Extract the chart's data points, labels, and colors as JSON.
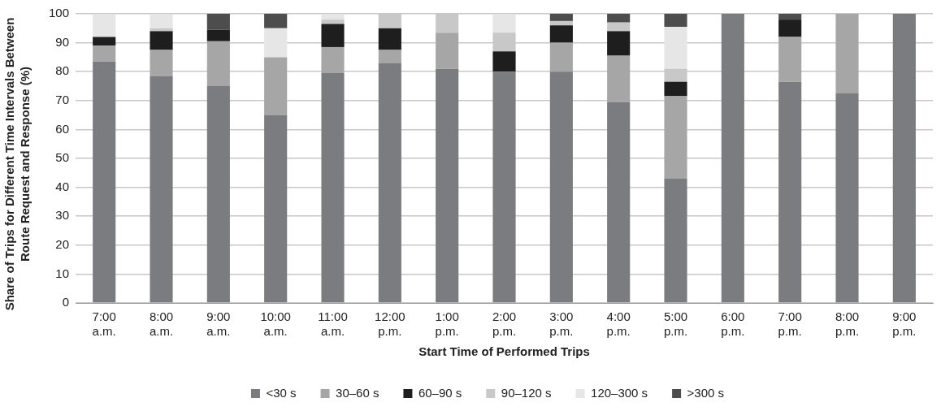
{
  "chart_data": {
    "type": "bar",
    "stacked": true,
    "xlabel": "Start Time of Performed Trips",
    "ylabel": "Share of Trips for Different Time Intervals Between Route Request and Response (%)",
    "categories": [
      "7:00 a.m.",
      "8:00 a.m.",
      "9:00 a.m.",
      "10:00 a.m.",
      "11:00 a.m.",
      "12:00 p.m.",
      "1:00 p.m.",
      "2:00 p.m.",
      "3:00 p.m.",
      "4:00 p.m.",
      "5:00 p.m.",
      "6:00 p.m.",
      "7:00 p.m.",
      "8:00 p.m.",
      "9:00 p.m."
    ],
    "series": [
      {
        "name": "<30 s",
        "color": "#7b7c80",
        "values": [
          83.5,
          78.5,
          75,
          65,
          79.5,
          83,
          81,
          80,
          80,
          69.5,
          43,
          100,
          76.5,
          72.5,
          100
        ]
      },
      {
        "name": "30–60 s",
        "color": "#a6a6a6",
        "values": [
          5.5,
          9,
          15.5,
          20,
          9,
          4.5,
          12.5,
          0,
          10,
          16,
          28.5,
          0,
          15.5,
          27.5,
          0
        ]
      },
      {
        "name": "60–90 s",
        "color": "#1e1e1e",
        "values": [
          3,
          6.5,
          4,
          0,
          8,
          7.5,
          0,
          7,
          6,
          8.5,
          5,
          0,
          6,
          0,
          0
        ]
      },
      {
        "name": "90–120 s",
        "color": "#c8c8c8",
        "values": [
          0,
          1,
          0,
          0,
          1.5,
          5,
          6.5,
          6.5,
          1.5,
          3,
          4.5,
          0,
          0,
          0,
          0
        ]
      },
      {
        "name": "120–300 s",
        "color": "#e6e6e6",
        "values": [
          8,
          5,
          0,
          10,
          2,
          0,
          0,
          6.5,
          0,
          0,
          14.5,
          0,
          0,
          0,
          0
        ]
      },
      {
        "name": ">300 s",
        "color": "#4d4d4d",
        "values": [
          0,
          0,
          5.5,
          5,
          0,
          0,
          0,
          0,
          2.5,
          3,
          4.5,
          0,
          2,
          0,
          0
        ]
      }
    ],
    "ylim": [
      0,
      100
    ],
    "yticks": [
      0,
      10,
      20,
      30,
      40,
      50,
      60,
      70,
      80,
      90,
      100
    ],
    "grid": "y",
    "legend": "bottom"
  }
}
